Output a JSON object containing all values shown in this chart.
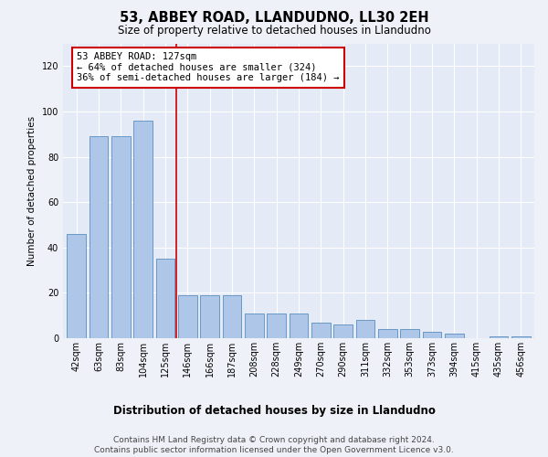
{
  "title": "53, ABBEY ROAD, LLANDUDNO, LL30 2EH",
  "subtitle": "Size of property relative to detached houses in Llandudno",
  "xlabel_bottom": "Distribution of detached houses by size in Llandudno",
  "ylabel": "Number of detached properties",
  "categories": [
    "42sqm",
    "63sqm",
    "83sqm",
    "104sqm",
    "125sqm",
    "146sqm",
    "166sqm",
    "187sqm",
    "208sqm",
    "228sqm",
    "249sqm",
    "270sqm",
    "290sqm",
    "311sqm",
    "332sqm",
    "353sqm",
    "373sqm",
    "394sqm",
    "415sqm",
    "435sqm",
    "456sqm"
  ],
  "values": [
    46,
    89,
    89,
    96,
    35,
    19,
    19,
    19,
    11,
    11,
    11,
    7,
    6,
    8,
    4,
    4,
    3,
    2,
    0,
    1,
    1
  ],
  "bar_color": "#aec6e8",
  "bar_edge_color": "#5a8fc0",
  "highlight_index": 4,
  "red_line_color": "#cc0000",
  "annotation_text": "53 ABBEY ROAD: 127sqm\n← 64% of detached houses are smaller (324)\n36% of semi-detached houses are larger (184) →",
  "annotation_box_color": "white",
  "annotation_box_edge": "#cc0000",
  "ylim": [
    0,
    130
  ],
  "yticks": [
    0,
    20,
    40,
    60,
    80,
    100,
    120
  ],
  "footnote": "Contains HM Land Registry data © Crown copyright and database right 2024.\nContains public sector information licensed under the Open Government Licence v3.0.",
  "bg_color": "#eef2f8",
  "plot_bg_color": "#e4eaf6",
  "title_fontsize": 10.5,
  "subtitle_fontsize": 8.5,
  "ylabel_fontsize": 7.5,
  "tick_fontsize": 7,
  "annotation_fontsize": 7.5,
  "xlabel_bottom_fontsize": 8.5,
  "footnote_fontsize": 6.5
}
